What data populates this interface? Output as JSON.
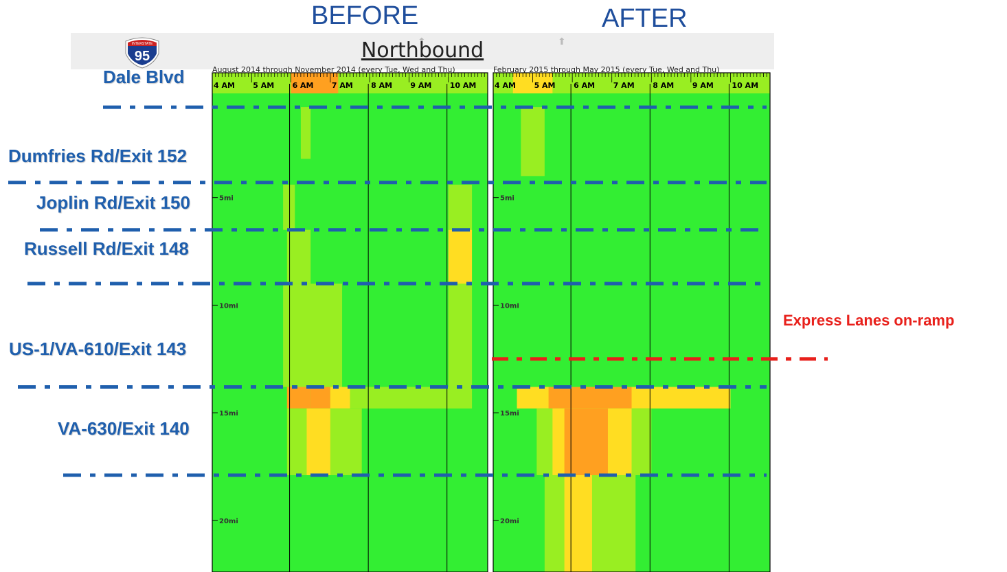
{
  "headers": {
    "before": "BEFORE",
    "after": "AFTER"
  },
  "title": "Northbound",
  "shield": {
    "label": "INTERSTATE",
    "number": "95"
  },
  "chart_data": {
    "type": "heatmap",
    "panels": [
      {
        "name": "before",
        "period": "August 2014 through November 2014 (every Tue, Wed and Thu)"
      },
      {
        "name": "after",
        "period": "February 2015 through May 2015 (every Tue, Wed and Thu)"
      }
    ],
    "x_ticks": [
      "4 AM",
      "5 AM",
      "6 AM",
      "7 AM",
      "8 AM",
      "9 AM",
      "10 AM"
    ],
    "x_range_hours": [
      4,
      11
    ],
    "y_ticks": [
      "5mi",
      "10mi",
      "15mi",
      "20mi"
    ],
    "y_tick_values": [
      5,
      10,
      15,
      20
    ],
    "y_range_mi": [
      0,
      22.4
    ],
    "colors": {
      "green": "#33ee33",
      "lime": "#99ee22",
      "yellow": "#ffdd22",
      "orange": "#ffa020",
      "red": "#ee3311",
      "grid": "#000000"
    },
    "cells": {
      "before": [
        {
          "x": [
            6.25,
            6.5
          ],
          "y": [
            0.8,
            3.2
          ],
          "c": "lime"
        },
        {
          "x": [
            5.8,
            6.1
          ],
          "y": [
            4.4,
            6.5
          ],
          "c": "lime"
        },
        {
          "x": [
            10.0,
            10.6
          ],
          "y": [
            4.4,
            6.5
          ],
          "c": "lime"
        },
        {
          "x": [
            5.9,
            6.5
          ],
          "y": [
            6.5,
            9.0
          ],
          "c": "lime"
        },
        {
          "x": [
            10.0,
            10.6
          ],
          "y": [
            6.5,
            9.0
          ],
          "c": "yellow"
        },
        {
          "x": [
            5.8,
            7.3
          ],
          "y": [
            9.0,
            13.8
          ],
          "c": "lime"
        },
        {
          "x": [
            10.0,
            10.6
          ],
          "y": [
            9.0,
            13.8
          ],
          "c": "lime"
        },
        {
          "x": [
            5.9,
            10.6
          ],
          "y": [
            13.8,
            14.8
          ],
          "c": "lime"
        },
        {
          "x": [
            5.9,
            6.5
          ],
          "y": [
            13.8,
            14.8
          ],
          "c": "orange"
        },
        {
          "x": [
            6.5,
            7.0
          ],
          "y": [
            13.8,
            14.8
          ],
          "c": "orange"
        },
        {
          "x": [
            7.0,
            7.5
          ],
          "y": [
            13.8,
            14.8
          ],
          "c": "yellow"
        },
        {
          "x": [
            5.9,
            7.8
          ],
          "y": [
            14.8,
            17.9
          ],
          "c": "lime"
        },
        {
          "x": [
            6.4,
            7.0
          ],
          "y": [
            14.8,
            17.9
          ],
          "c": "yellow"
        },
        {
          "x": [
            6.5,
            6.6
          ],
          "y": [
            -0.6,
            0.8
          ],
          "c": "red"
        },
        {
          "x": [
            6.0,
            7.2
          ],
          "y": [
            -0.6,
            0.8
          ],
          "c": "orange"
        }
      ],
      "after": [
        {
          "x": [
            4.7,
            5.3
          ],
          "y": [
            0.8,
            4.0
          ],
          "c": "lime"
        },
        {
          "x": [
            4.6,
            10.0
          ],
          "y": [
            13.8,
            14.8
          ],
          "c": "yellow"
        },
        {
          "x": [
            5.4,
            7.5
          ],
          "y": [
            13.8,
            14.8
          ],
          "c": "orange"
        },
        {
          "x": [
            5.1,
            8.0
          ],
          "y": [
            14.8,
            17.9
          ],
          "c": "lime"
        },
        {
          "x": [
            5.5,
            7.5
          ],
          "y": [
            14.8,
            17.9
          ],
          "c": "yellow"
        },
        {
          "x": [
            5.8,
            6.9
          ],
          "y": [
            14.8,
            17.9
          ],
          "c": "orange"
        },
        {
          "x": [
            5.3,
            7.6
          ],
          "y": [
            17.9,
            22.4
          ],
          "c": "lime"
        },
        {
          "x": [
            5.8,
            6.5
          ],
          "y": [
            17.9,
            22.4
          ],
          "c": "yellow"
        },
        {
          "x": [
            4.7,
            5.2
          ],
          "y": [
            -0.6,
            0.8
          ],
          "c": "orange"
        },
        {
          "x": [
            4.5,
            5.5
          ],
          "y": [
            -0.6,
            0.8
          ],
          "c": "yellow"
        }
      ]
    },
    "locations": [
      {
        "label": "Dale Blvd",
        "mi": 0.8
      },
      {
        "label": "Dumfries Rd/Exit 152",
        "mi": 4.3
      },
      {
        "label": "Joplin Rd/Exit 150",
        "mi": 6.5
      },
      {
        "label": "Russell Rd/Exit 148",
        "mi": 9.0
      },
      {
        "label": "US-1/VA-610/Exit 143",
        "mi": 13.8
      },
      {
        "label": "VA-630/Exit 140",
        "mi": 17.9
      }
    ],
    "annotation": {
      "label": "Express Lanes on-ramp",
      "mi": 12.5,
      "color": "#e8201b"
    }
  }
}
